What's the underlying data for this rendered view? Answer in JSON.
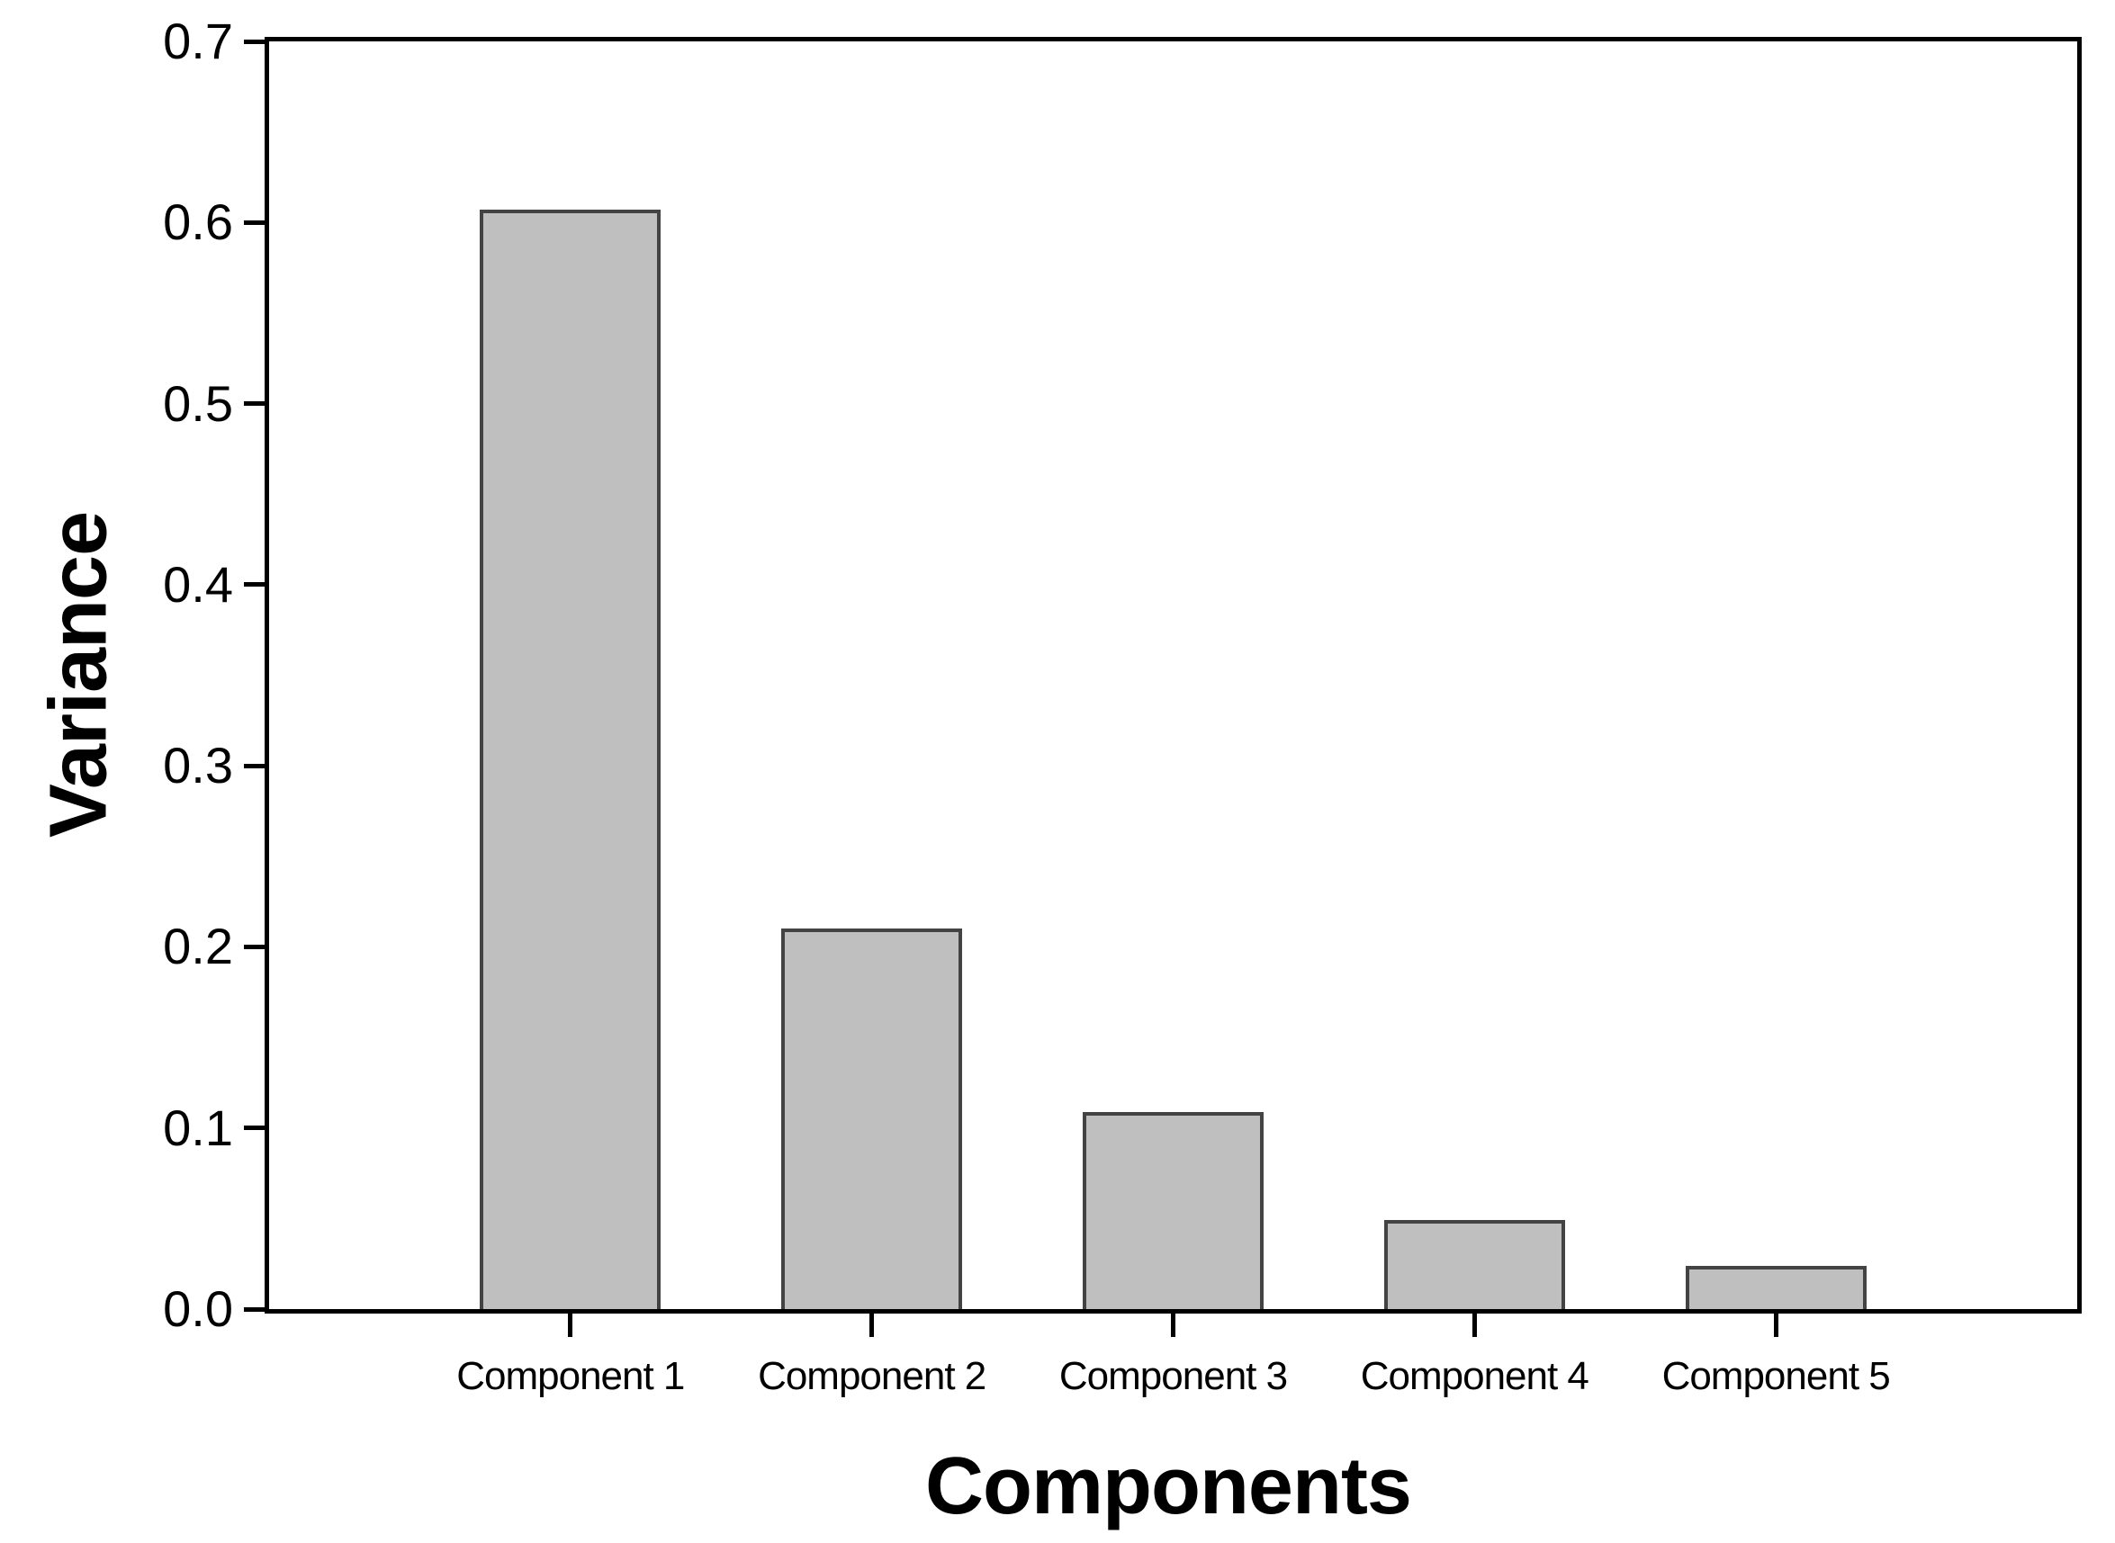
{
  "chart_data": {
    "type": "bar",
    "title": "",
    "categories": [
      "Component 1",
      "Component 2",
      "Component 3",
      "Component 4",
      "Component 5"
    ],
    "values": [
      0.607,
      0.21,
      0.109,
      0.049,
      0.024
    ],
    "xlabel": "Components",
    "ylabel": "Variance",
    "ylim": [
      0,
      0.7
    ],
    "yticks": [
      "0.0",
      "0.1",
      "0.2",
      "0.3",
      "0.4",
      "0.5",
      "0.6",
      "0.7"
    ],
    "grid": false,
    "legend": "none",
    "bar_fill_color": "#bfbfbf",
    "bar_stroke_color": "#434343",
    "axis_color": "#000000",
    "background_color": "#ffffff"
  }
}
